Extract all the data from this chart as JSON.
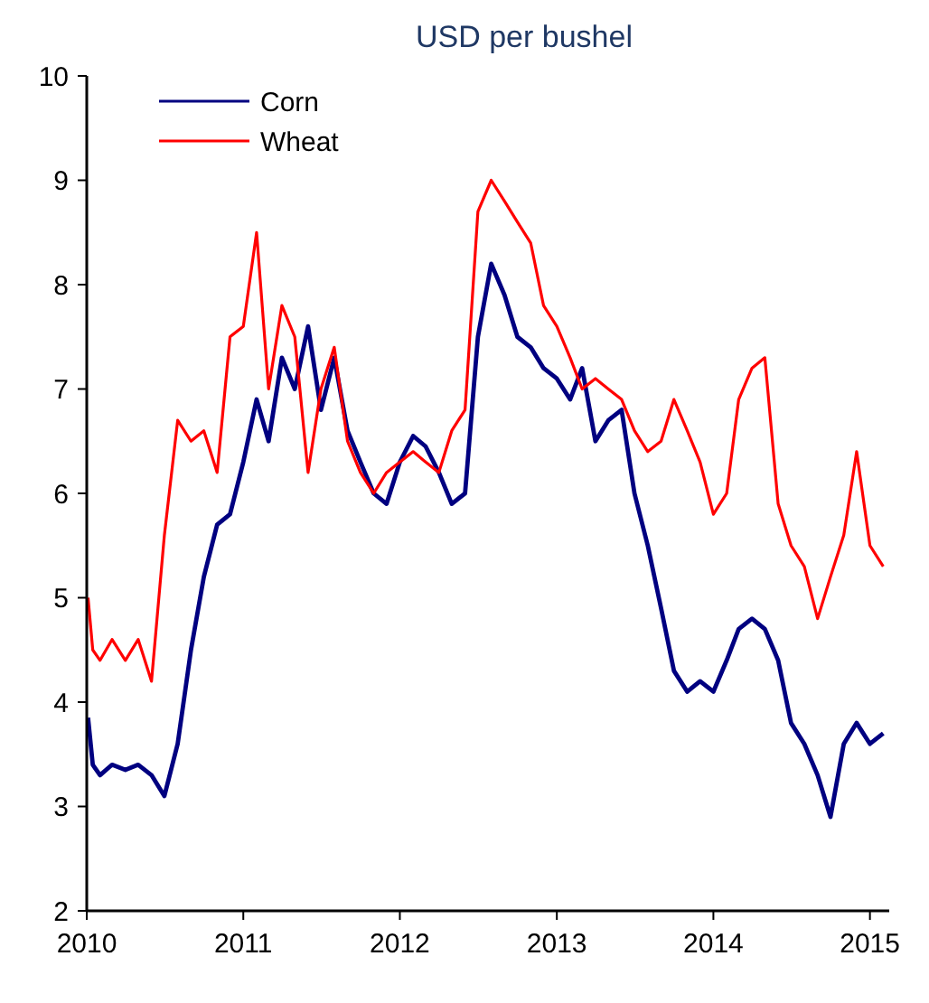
{
  "chart_data": {
    "type": "line",
    "title": "USD per bushel",
    "legend": "top left",
    "grid": false,
    "x": [
      "2010-01-04",
      "2010-01-15",
      "2010-02-01",
      "2010-03-01",
      "2010-04-01",
      "2010-05-01",
      "2010-06-01",
      "2010-07-01",
      "2010-08-01",
      "2010-09-01",
      "2010-10-01",
      "2010-11-01",
      "2010-12-01",
      "2011-01-01",
      "2011-02-01",
      "2011-03-01",
      "2011-04-01",
      "2011-05-01",
      "2011-06-01",
      "2011-07-01",
      "2011-08-01",
      "2011-09-01",
      "2011-10-01",
      "2011-11-01",
      "2011-12-01",
      "2012-01-01",
      "2012-02-01",
      "2012-03-01",
      "2012-04-01",
      "2012-05-01",
      "2012-06-01",
      "2012-07-01",
      "2012-08-01",
      "2012-09-01",
      "2012-10-01",
      "2012-11-01",
      "2012-12-01",
      "2013-01-01",
      "2013-02-01",
      "2013-03-01",
      "2013-04-01",
      "2013-05-01",
      "2013-06-01",
      "2013-07-01",
      "2013-08-01",
      "2013-09-01",
      "2013-10-01",
      "2013-11-01",
      "2013-12-01",
      "2014-01-01",
      "2014-02-01",
      "2014-03-01",
      "2014-04-01",
      "2014-05-01",
      "2014-06-01",
      "2014-07-01",
      "2014-08-01",
      "2014-09-01",
      "2014-10-01",
      "2014-11-01",
      "2014-12-01",
      "2015-01-01",
      "2015-02-01"
    ],
    "series": [
      {
        "name": "Corn",
        "color": "#000080",
        "values": [
          3.85,
          3.4,
          3.3,
          3.4,
          3.35,
          3.4,
          3.3,
          3.1,
          3.6,
          4.5,
          5.2,
          5.7,
          5.8,
          6.3,
          6.9,
          6.5,
          7.3,
          7.0,
          7.6,
          6.8,
          7.3,
          6.6,
          6.3,
          6.0,
          5.9,
          6.3,
          6.55,
          6.45,
          6.2,
          5.9,
          6.0,
          7.5,
          8.2,
          7.9,
          7.5,
          7.4,
          7.2,
          7.1,
          6.9,
          7.2,
          6.5,
          6.7,
          6.8,
          6.0,
          5.5,
          4.9,
          4.3,
          4.1,
          4.2,
          4.1,
          4.4,
          4.7,
          4.8,
          4.7,
          4.4,
          3.8,
          3.6,
          3.3,
          2.9,
          3.6,
          3.8,
          3.6,
          3.7
        ]
      },
      {
        "name": "Wheat",
        "color": "#ff0000",
        "values": [
          5.0,
          4.5,
          4.4,
          4.6,
          4.4,
          4.6,
          4.2,
          5.6,
          6.7,
          6.5,
          6.6,
          6.2,
          7.5,
          7.6,
          8.5,
          7.0,
          7.8,
          7.5,
          6.2,
          7.0,
          7.4,
          6.5,
          6.2,
          6.0,
          6.2,
          6.3,
          6.4,
          6.3,
          6.2,
          6.6,
          6.8,
          8.7,
          9.0,
          8.8,
          8.6,
          8.4,
          7.8,
          7.6,
          7.3,
          7.0,
          7.1,
          7.0,
          6.9,
          6.6,
          6.4,
          6.5,
          6.9,
          6.6,
          6.3,
          5.8,
          6.0,
          6.9,
          7.2,
          7.3,
          5.9,
          5.5,
          5.3,
          4.8,
          5.2,
          5.6,
          6.4,
          5.5,
          5.3
        ]
      }
    ],
    "xlim": [
      "2010-01-01",
      "2015-02-15"
    ],
    "xticks": [
      {
        "value": "2010-01-01",
        "label": "2010"
      },
      {
        "value": "2011-01-01",
        "label": "2011"
      },
      {
        "value": "2012-01-01",
        "label": "2012"
      },
      {
        "value": "2013-01-01",
        "label": "2013"
      },
      {
        "value": "2014-01-01",
        "label": "2014"
      },
      {
        "value": "2015-01-01",
        "label": "2015"
      }
    ],
    "ylim": [
      2,
      10
    ],
    "yticks": [
      2,
      3,
      4,
      5,
      6,
      7,
      8,
      9,
      10
    ]
  }
}
